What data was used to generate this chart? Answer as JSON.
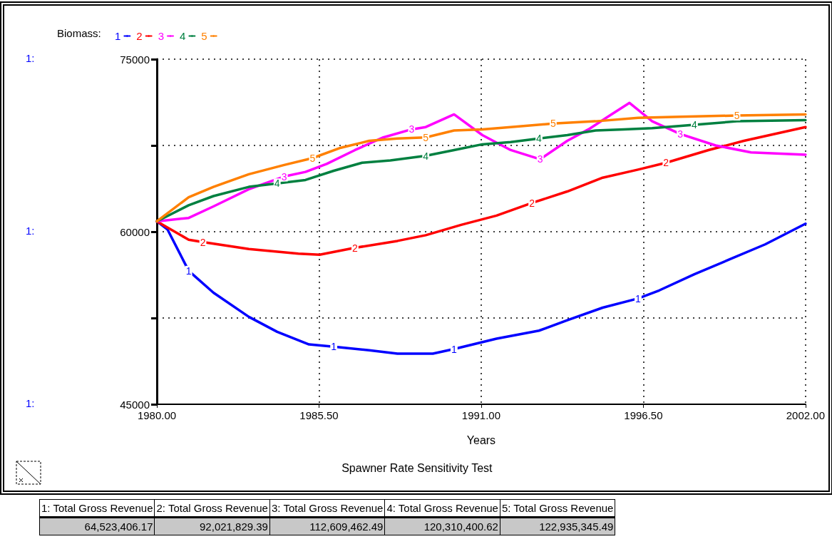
{
  "chart_data": {
    "type": "line",
    "title": "Spawner Rate Sensitivity Test",
    "xlabel": "Years",
    "legend_title": "Biomass:",
    "legend": "top left",
    "grid": true,
    "marker": "none",
    "line_style": "solid",
    "xlim": [
      1980,
      2002
    ],
    "xticks": [
      {
        "value": 1980,
        "label": "1980.00"
      },
      {
        "value": 1985.5,
        "label": "1985.50"
      },
      {
        "value": 1991,
        "label": "1991.00"
      },
      {
        "value": 1996.5,
        "label": "1996.50"
      },
      {
        "value": 2002,
        "label": "2002.00"
      }
    ],
    "ylim": [
      45000,
      75000
    ],
    "yticks": [
      45000,
      {
        "value": 52500,
        "label": null
      },
      60000,
      {
        "value": 67500,
        "label": null
      },
      75000
    ],
    "annotations": [
      "1:",
      "1:",
      "1:",
      "1: Total Gross  Revenue",
      "2: Total Gross  Revenue",
      "3: Total Gross  Revenue",
      "4: Total Gross  Revenue",
      "5: Total Gross  Revenue",
      "64,523,406.17",
      "92,021,829.39",
      "112,609,462.49",
      "120,310,400.62",
      "122,935,345.49"
    ],
    "series": [
      {
        "name": "1",
        "color": "#0000ff",
        "x": [
          1980,
          1980.36,
          1981.08,
          1981.92,
          1983.12,
          1984.08,
          1985.16,
          1986.0,
          1987.2,
          1988.16,
          1989.36,
          1990.08,
          1991.52,
          1992.96,
          1993.92,
          1995.12,
          1996.32,
          1997.04,
          1998.23,
          1999.43,
          2000.63,
          2002
        ],
        "values": [
          60900,
          60200,
          56600,
          54700,
          52600,
          51300,
          50200,
          50000,
          49700,
          49400,
          49400,
          49800,
          50700,
          51400,
          52300,
          53400,
          54200,
          54900,
          56300,
          57600,
          58900,
          60700
        ]
      },
      {
        "name": "2",
        "color": "#ff0000",
        "x": [
          1980,
          1981.08,
          1981.56,
          1983.12,
          1984.8,
          1985.52,
          1986.72,
          1988.16,
          1989.12,
          1990.32,
          1991.52,
          1992.72,
          1993.92,
          1995.12,
          1996.32,
          1997.27,
          1998.71,
          1999.91,
          2002
        ],
        "values": [
          60900,
          59300,
          59100,
          58500,
          58100,
          58000,
          58600,
          59200,
          59700,
          60600,
          61400,
          62500,
          63500,
          64700,
          65400,
          66000,
          67100,
          67900,
          69100
        ]
      },
      {
        "name": "3",
        "color": "#ff00ff",
        "x": [
          1980,
          1981.08,
          1981.92,
          1983.12,
          1984.32,
          1985.04,
          1985.76,
          1986.72,
          1987.68,
          1988.64,
          1989.12,
          1990.08,
          1991.04,
          1992.0,
          1993.0,
          1993.92,
          1994.64,
          1995.36,
          1996.03,
          1996.8,
          1997.75,
          1998.95,
          2000.15,
          2002
        ],
        "values": [
          60900,
          61200,
          62200,
          63700,
          64800,
          65200,
          65900,
          67100,
          68200,
          68900,
          69100,
          70200,
          68400,
          67100,
          66300,
          67900,
          68900,
          70100,
          71200,
          69600,
          68500,
          67500,
          66900,
          66700
        ]
      },
      {
        "name": "4",
        "color": "#008040",
        "x": [
          1980,
          1981.08,
          1981.92,
          1983.12,
          1984.08,
          1985.04,
          1986.0,
          1986.96,
          1987.92,
          1989.12,
          1990.08,
          1991.04,
          1992.0,
          1992.96,
          1993.92,
          1994.88,
          1995.84,
          1996.8,
          1998.23,
          1999.67,
          2002
        ],
        "values": [
          60900,
          62300,
          63100,
          63900,
          64200,
          64500,
          65300,
          66000,
          66200,
          66600,
          67100,
          67600,
          67800,
          68100,
          68400,
          68800,
          68900,
          69000,
          69300,
          69600,
          69700
        ]
      },
      {
        "name": "5",
        "color": "#ff8000",
        "x": [
          1980,
          1981.08,
          1981.92,
          1983.12,
          1984.32,
          1985.28,
          1986.24,
          1987.2,
          1988.16,
          1989.12,
          1990.08,
          1991.04,
          1992.0,
          1993.44,
          1994.88,
          1996.32,
          1997.75,
          1999.67,
          2002
        ],
        "values": [
          60900,
          63000,
          63900,
          65000,
          65800,
          66400,
          67300,
          67900,
          68100,
          68200,
          68800,
          68900,
          69100,
          69400,
          69600,
          69900,
          70000,
          70100,
          70200
        ]
      }
    ]
  }
}
